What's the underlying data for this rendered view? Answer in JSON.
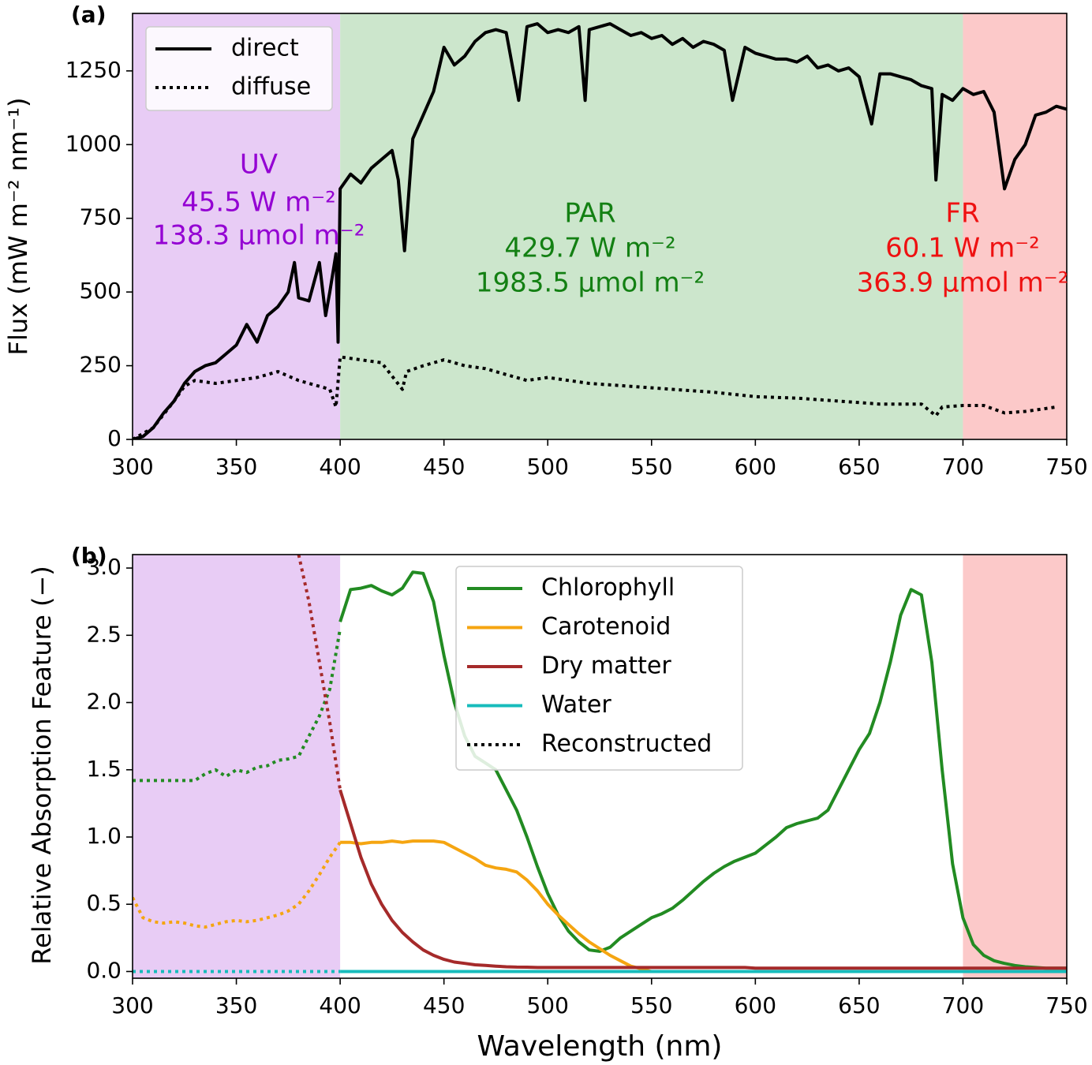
{
  "chart_data": [
    {
      "type": "line",
      "panel_label": "(a)",
      "y_label": "Flux (mW m⁻² nm⁻¹)",
      "xlim": [
        300,
        750
      ],
      "xticks": [
        300,
        350,
        400,
        450,
        500,
        550,
        600,
        650,
        700,
        750
      ],
      "ylim": [
        0,
        1445
      ],
      "yticks": [
        0,
        250,
        500,
        750,
        1000,
        1250
      ],
      "legend": "upper left",
      "regions": [
        {
          "name": "UV",
          "range": [
            300,
            400
          ],
          "color": "#e8ccf5",
          "text_color": "#9400d3",
          "label_lines": [
            "UV",
            "45.5 W m⁻²",
            "138.3 µmol m⁻²"
          ]
        },
        {
          "name": "PAR",
          "range": [
            400,
            700
          ],
          "color": "#cce6cc",
          "text_color": "#138013",
          "label_lines": [
            "PAR",
            "429.7 W m⁻²",
            "1983.5 µmol m⁻²"
          ]
        },
        {
          "name": "FR",
          "range": [
            700,
            750
          ],
          "color": "#fcc9c9",
          "text_color": "#ee1111",
          "label_lines": [
            "FR",
            "60.1 W m⁻²",
            "363.9 µmol m⁻²"
          ]
        }
      ],
      "series": [
        {
          "name": "direct",
          "color": "#000000",
          "linestyle": "solid",
          "x": [
            300,
            305,
            310,
            315,
            320,
            325,
            330,
            335,
            340,
            345,
            350,
            355,
            360,
            365,
            370,
            375,
            378,
            380,
            385,
            390,
            393,
            395,
            398,
            399,
            400,
            405,
            410,
            415,
            420,
            425,
            428,
            431,
            435,
            440,
            445,
            450,
            455,
            460,
            465,
            470,
            475,
            480,
            486,
            490,
            495,
            500,
            505,
            510,
            515,
            518,
            520,
            525,
            530,
            535,
            540,
            545,
            550,
            555,
            560,
            565,
            570,
            575,
            580,
            585,
            589,
            595,
            600,
            605,
            610,
            615,
            620,
            625,
            630,
            635,
            640,
            645,
            650,
            656,
            660,
            665,
            670,
            675,
            680,
            685,
            687,
            690,
            695,
            700,
            705,
            710,
            715,
            720,
            725,
            730,
            735,
            740,
            745,
            750
          ],
          "values": [
            0,
            10,
            40,
            90,
            130,
            190,
            230,
            250,
            260,
            290,
            320,
            390,
            330,
            420,
            450,
            500,
            600,
            480,
            470,
            600,
            420,
            500,
            630,
            330,
            850,
            900,
            870,
            920,
            950,
            980,
            880,
            640,
            1020,
            1100,
            1180,
            1330,
            1270,
            1300,
            1350,
            1380,
            1390,
            1380,
            1150,
            1400,
            1410,
            1380,
            1390,
            1380,
            1400,
            1150,
            1390,
            1400,
            1410,
            1390,
            1370,
            1380,
            1360,
            1370,
            1340,
            1360,
            1330,
            1350,
            1340,
            1320,
            1150,
            1330,
            1310,
            1300,
            1290,
            1290,
            1280,
            1300,
            1260,
            1270,
            1250,
            1260,
            1230,
            1070,
            1240,
            1240,
            1230,
            1220,
            1200,
            1190,
            880,
            1170,
            1150,
            1190,
            1170,
            1180,
            1110,
            850,
            950,
            1000,
            1100,
            1110,
            1130,
            1120
          ]
        },
        {
          "name": "diffuse",
          "color": "#000000",
          "linestyle": "dotted",
          "x": [
            300,
            310,
            320,
            325,
            330,
            340,
            350,
            360,
            370,
            380,
            390,
            395,
            398,
            400,
            410,
            420,
            430,
            432,
            440,
            450,
            460,
            470,
            480,
            490,
            500,
            520,
            540,
            560,
            580,
            600,
            620,
            640,
            660,
            680,
            687,
            690,
            700,
            710,
            720,
            730,
            740,
            745
          ],
          "values": [
            0,
            40,
            130,
            180,
            200,
            190,
            200,
            210,
            230,
            200,
            180,
            170,
            110,
            280,
            270,
            260,
            170,
            230,
            250,
            270,
            250,
            240,
            220,
            200,
            210,
            190,
            180,
            170,
            160,
            145,
            140,
            130,
            120,
            120,
            80,
            110,
            115,
            115,
            90,
            95,
            105,
            110
          ]
        }
      ]
    },
    {
      "type": "line",
      "panel_label": "(b)",
      "y_label": "Relative Absorption Feature (−)",
      "x_label": "Wavelength (nm)",
      "xlim": [
        300,
        750
      ],
      "xticks": [
        300,
        350,
        400,
        450,
        500,
        550,
        600,
        650,
        700,
        750
      ],
      "ylim": [
        -0.05,
        3.1
      ],
      "yticks": [
        {
          "value": 0,
          "label": "0.0"
        },
        0.5,
        {
          "value": 1,
          "label": "1.0"
        },
        1.5,
        {
          "value": 2,
          "label": "2.0"
        },
        2.5,
        {
          "value": 3,
          "label": "3.0"
        }
      ],
      "legend": "upper center",
      "regions": [
        {
          "range": [
            300,
            400
          ],
          "color": "#e8ccf5"
        },
        {
          "range": [
            700,
            750
          ],
          "color": "#fcc9c9"
        }
      ],
      "reconstructed_label": "Reconstructed",
      "reconstructed_linestyle": "dotted",
      "x": [
        400,
        405,
        410,
        415,
        420,
        425,
        430,
        435,
        440,
        445,
        450,
        455,
        460,
        465,
        470,
        475,
        480,
        485,
        490,
        495,
        500,
        505,
        510,
        515,
        520,
        525,
        530,
        535,
        540,
        545,
        550,
        555,
        560,
        565,
        570,
        575,
        580,
        585,
        590,
        595,
        600,
        605,
        610,
        615,
        620,
        625,
        630,
        635,
        640,
        645,
        650,
        655,
        660,
        665,
        670,
        675,
        680,
        685,
        690,
        695,
        700,
        705,
        710,
        715,
        720,
        725,
        730,
        735,
        740,
        745,
        750
      ],
      "reconstructed_x": [
        300,
        305,
        310,
        315,
        320,
        325,
        330,
        335,
        340,
        345,
        350,
        355,
        360,
        365,
        370,
        375,
        380,
        385,
        390,
        395,
        400
      ],
      "series": [
        {
          "name": "Chlorophyll",
          "color": "#228b22",
          "values": [
            2.6,
            2.84,
            2.85,
            2.87,
            2.83,
            2.8,
            2.85,
            2.97,
            2.96,
            2.75,
            2.35,
            2.0,
            1.75,
            1.6,
            1.55,
            1.5,
            1.35,
            1.2,
            1.0,
            0.78,
            0.58,
            0.42,
            0.3,
            0.22,
            0.16,
            0.15,
            0.18,
            0.25,
            0.3,
            0.35,
            0.4,
            0.43,
            0.47,
            0.53,
            0.6,
            0.67,
            0.73,
            0.78,
            0.82,
            0.85,
            0.88,
            0.94,
            1.0,
            1.07,
            1.1,
            1.12,
            1.14,
            1.2,
            1.35,
            1.5,
            1.65,
            1.77,
            2.0,
            2.3,
            2.65,
            2.84,
            2.8,
            2.3,
            1.5,
            0.8,
            0.4,
            0.2,
            0.12,
            0.08,
            0.06,
            0.045,
            0.035,
            0.03,
            0.025,
            0.025,
            0.025
          ],
          "reconstructed": [
            1.42,
            1.42,
            1.42,
            1.42,
            1.42,
            1.42,
            1.42,
            1.47,
            1.5,
            1.45,
            1.5,
            1.48,
            1.52,
            1.53,
            1.57,
            1.58,
            1.6,
            1.75,
            1.9,
            2.1,
            2.55
          ]
        },
        {
          "name": "Carotenoid",
          "color": "#f5a511",
          "values": [
            0.96,
            0.96,
            0.95,
            0.96,
            0.96,
            0.97,
            0.96,
            0.97,
            0.97,
            0.97,
            0.96,
            0.92,
            0.88,
            0.84,
            0.79,
            0.77,
            0.76,
            0.74,
            0.68,
            0.6,
            0.5,
            0.42,
            0.35,
            0.28,
            0.22,
            0.17,
            0.12,
            0.08,
            0.04,
            0.02,
            0.0,
            null,
            null,
            null,
            null,
            null,
            null,
            null,
            null,
            null,
            null,
            null,
            null,
            null,
            null,
            null,
            null,
            null,
            null,
            null,
            null,
            null,
            null,
            null,
            null,
            null,
            null,
            null,
            null,
            null,
            null,
            null,
            null,
            null,
            null,
            null,
            null,
            null,
            null,
            null,
            null
          ],
          "reconstructed": [
            0.55,
            0.4,
            0.37,
            0.36,
            0.37,
            0.36,
            0.34,
            0.33,
            0.35,
            0.37,
            0.38,
            0.37,
            0.38,
            0.4,
            0.42,
            0.45,
            0.5,
            0.6,
            0.72,
            0.85,
            0.96
          ]
        },
        {
          "name": "Dry matter",
          "color": "#a52a2a",
          "values": [
            1.35,
            1.1,
            0.85,
            0.65,
            0.5,
            0.38,
            0.29,
            0.22,
            0.16,
            0.12,
            0.09,
            0.07,
            0.06,
            0.05,
            0.045,
            0.04,
            0.035,
            0.033,
            0.032,
            0.03,
            0.03,
            0.03,
            0.03,
            0.03,
            0.03,
            0.03,
            0.03,
            0.03,
            0.03,
            0.03,
            0.03,
            0.03,
            0.03,
            0.03,
            0.03,
            0.03,
            0.03,
            0.03,
            0.03,
            0.03,
            0.025,
            0.025,
            0.025,
            0.025,
            0.025,
            0.025,
            0.025,
            0.025,
            0.025,
            0.025,
            0.025,
            0.025,
            0.025,
            0.025,
            0.025,
            0.025,
            0.025,
            0.025,
            0.025,
            0.025,
            0.025,
            0.025,
            0.025,
            0.025,
            0.025,
            0.025,
            0.025,
            0.025,
            0.025,
            0.025,
            0.025
          ],
          "reconstructed": [
            null,
            null,
            null,
            null,
            null,
            null,
            null,
            null,
            null,
            null,
            null,
            null,
            null,
            null,
            null,
            null,
            3.1,
            2.75,
            2.3,
            1.85,
            1.35
          ]
        },
        {
          "name": "Water",
          "color": "#17bcbc",
          "values": [
            0,
            0,
            0,
            0,
            0,
            0,
            0,
            0,
            0,
            0,
            0,
            0,
            0,
            0,
            0,
            0,
            0,
            0,
            0,
            0,
            0,
            0,
            0,
            0,
            0,
            0,
            0,
            0,
            0,
            0,
            0,
            0,
            0,
            0,
            0,
            0,
            0,
            0,
            0,
            0,
            0,
            0,
            0,
            0,
            0,
            0,
            0,
            0,
            0,
            0,
            0,
            0,
            0,
            0,
            0,
            0,
            0,
            0,
            0,
            0,
            0,
            0,
            0,
            0,
            0,
            0,
            0,
            0,
            0,
            0,
            0
          ],
          "reconstructed": [
            0,
            0,
            0,
            0,
            0,
            0,
            0,
            0,
            0,
            0,
            0,
            0,
            0,
            0,
            0,
            0,
            0,
            0,
            0,
            0,
            0
          ]
        }
      ]
    }
  ]
}
